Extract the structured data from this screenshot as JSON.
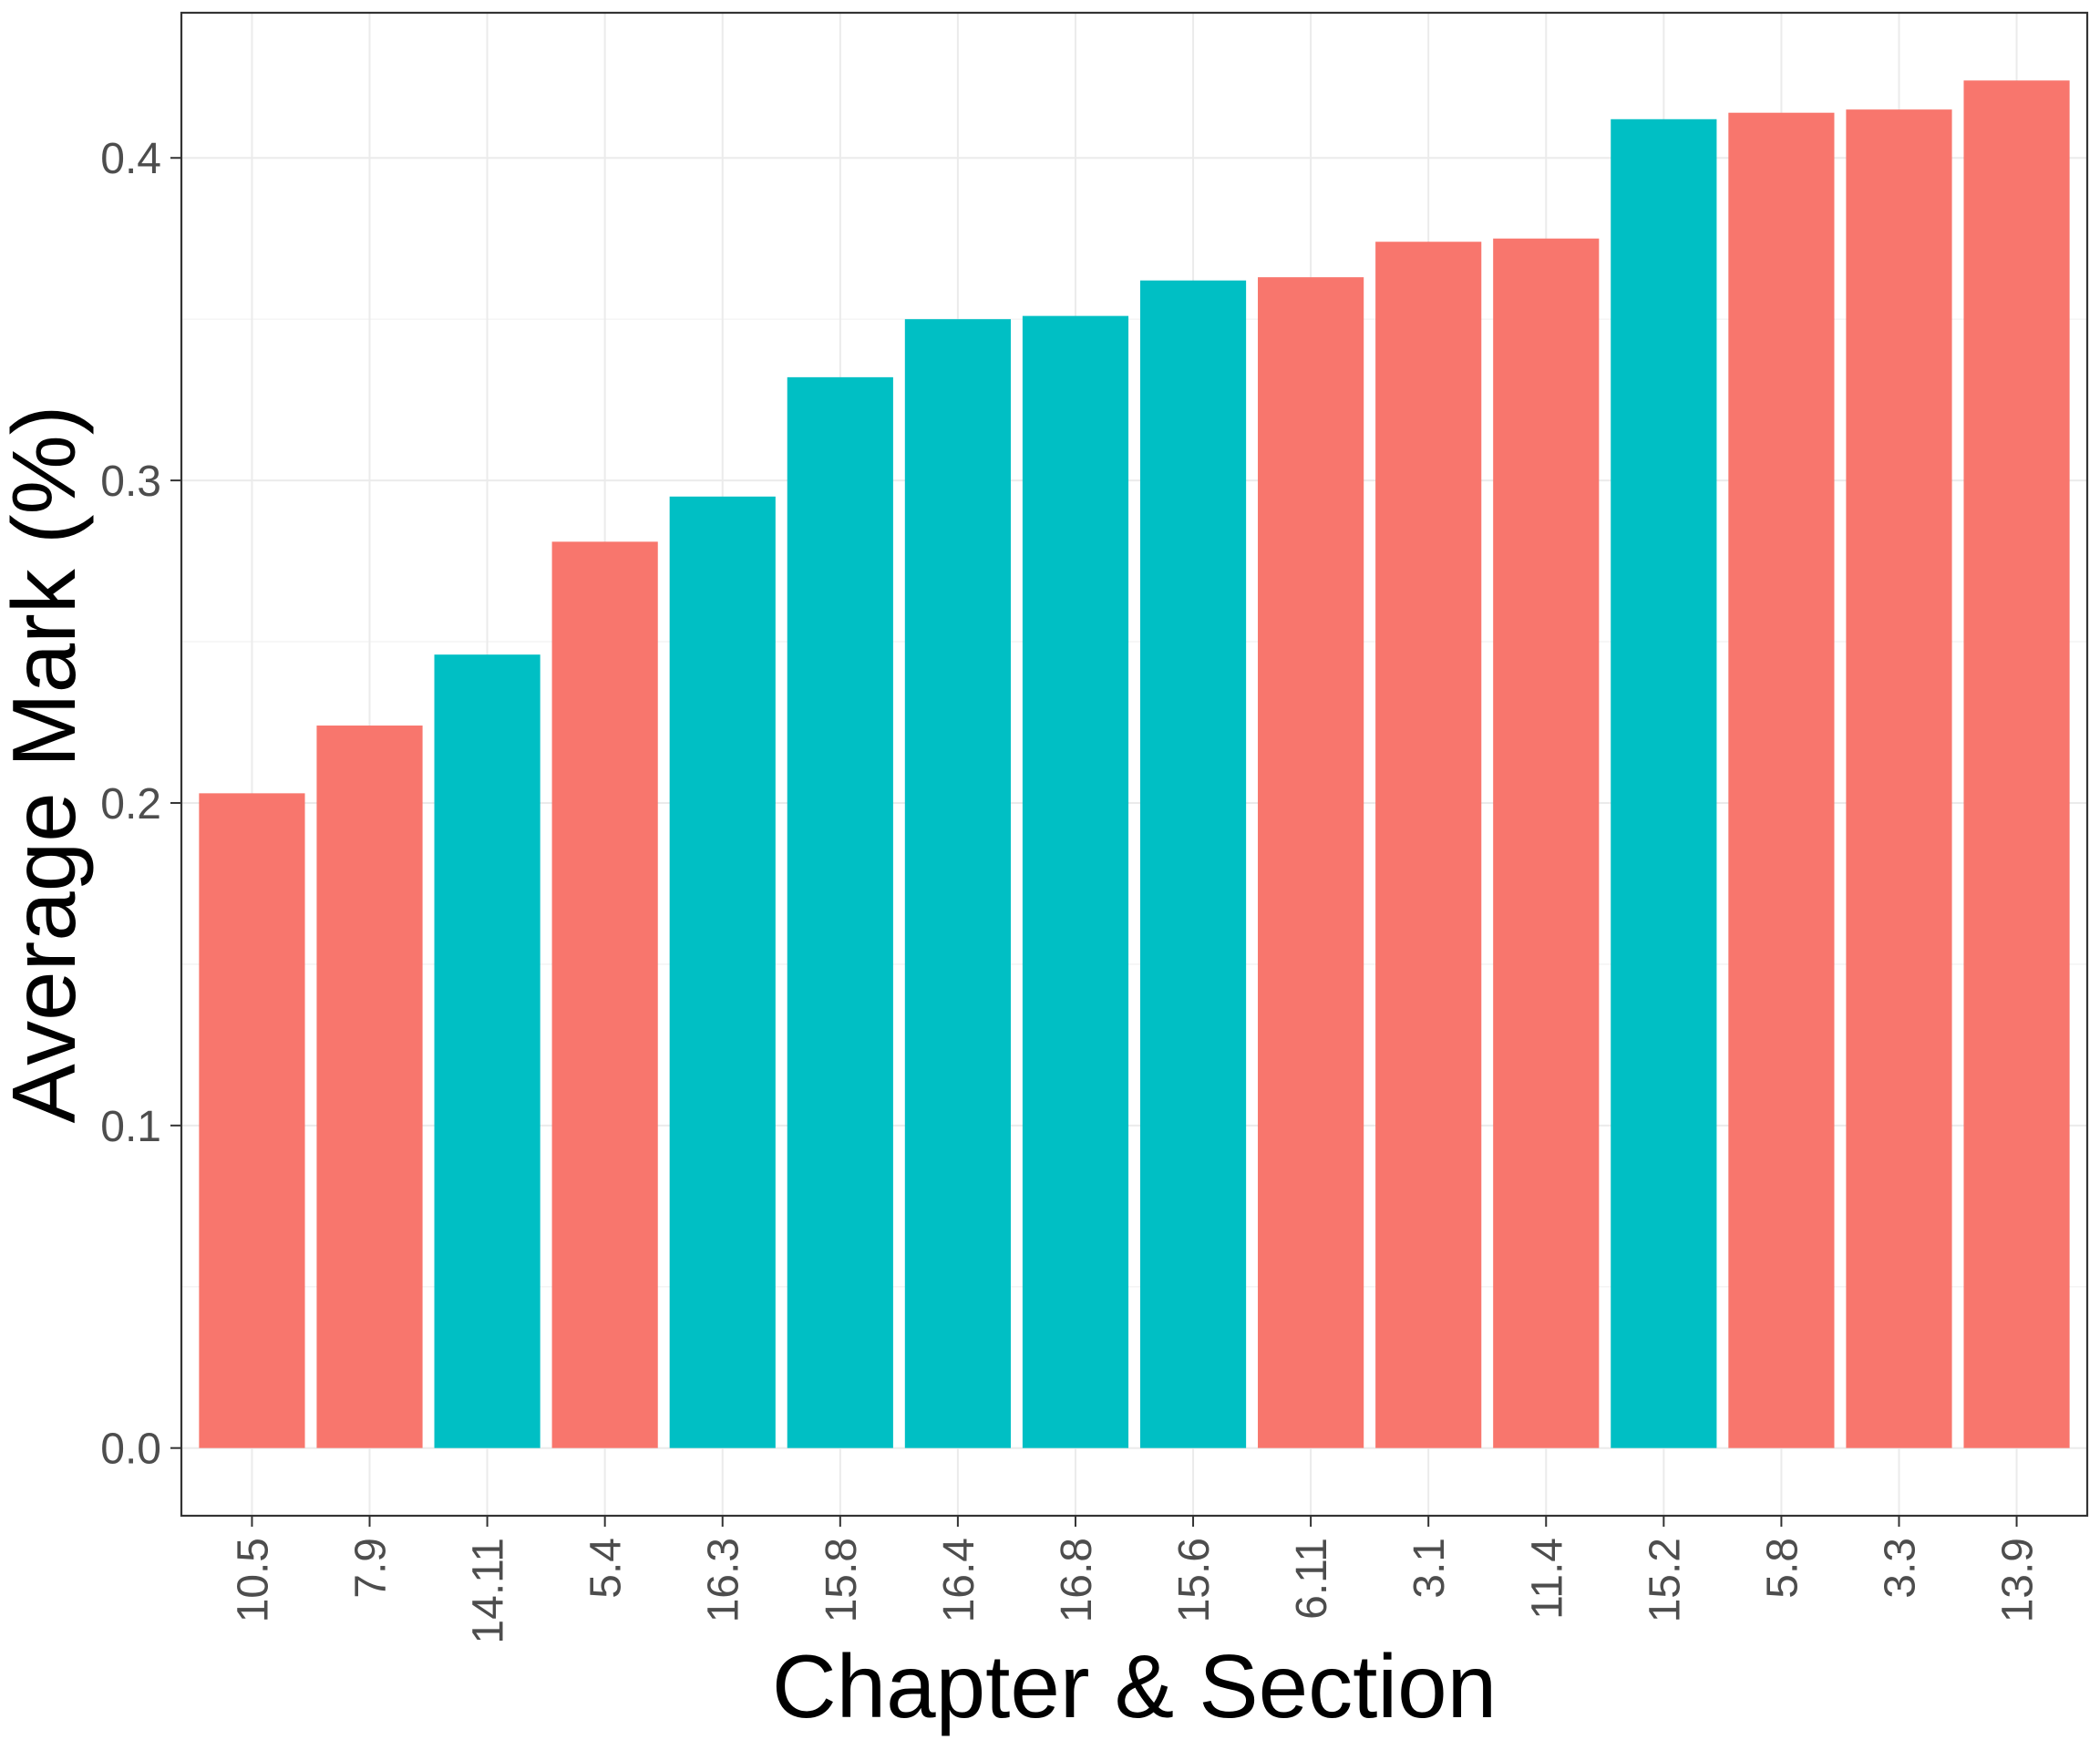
{
  "chart_data": {
    "type": "bar",
    "xlabel": "Chapter & Section",
    "ylabel": "Average Mark (%)",
    "categories": [
      "10.5",
      "7.9",
      "14.11",
      "5.4",
      "16.3",
      "15.8",
      "16.4",
      "16.8",
      "15.6",
      "6.11",
      "3.1",
      "11.4",
      "15.2",
      "5.8",
      "3.3",
      "13.9"
    ],
    "values": [
      0.203,
      0.224,
      0.246,
      0.281,
      0.295,
      0.332,
      0.35,
      0.351,
      0.362,
      0.363,
      0.374,
      0.375,
      0.412,
      0.414,
      0.415,
      0.424
    ],
    "bar_colors": [
      "#F8766D",
      "#F8766D",
      "#00BFC4",
      "#F8766D",
      "#00BFC4",
      "#00BFC4",
      "#00BFC4",
      "#00BFC4",
      "#00BFC4",
      "#F8766D",
      "#F8766D",
      "#F8766D",
      "#00BFC4",
      "#F8766D",
      "#F8766D",
      "#F8766D"
    ],
    "y_ticks": [
      0.0,
      0.1,
      0.2,
      0.3,
      0.4
    ],
    "y_tick_labels": [
      "0.0",
      "0.1",
      "0.2",
      "0.3",
      "0.4"
    ],
    "ylim": [
      -0.021,
      0.445
    ],
    "grid": true,
    "legend": "none"
  }
}
